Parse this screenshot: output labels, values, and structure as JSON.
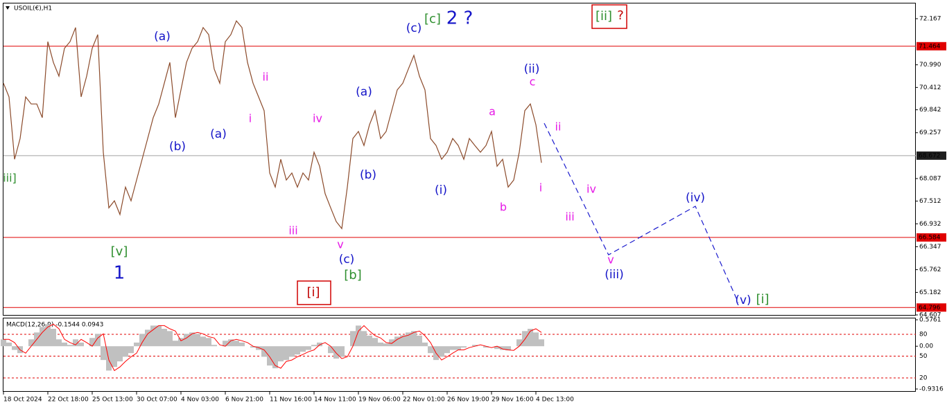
{
  "chart_data": [
    {
      "type": "line",
      "title": "USOIL(€),H1",
      "color": "#8b4a2a",
      "x": [
        0,
        1,
        2,
        3,
        4,
        5,
        6,
        7,
        8,
        9,
        10,
        11,
        12,
        13,
        14,
        15,
        16,
        17,
        18,
        19,
        20,
        21,
        22,
        23,
        24,
        25,
        26,
        27,
        28,
        29,
        30,
        31,
        32,
        33,
        34,
        35,
        36,
        37,
        38,
        39,
        40,
        41,
        42,
        43,
        44,
        45,
        46,
        47,
        48,
        49,
        50,
        51,
        52,
        53,
        54,
        55,
        56,
        57,
        58,
        59,
        60,
        61,
        62,
        63,
        64,
        65,
        66,
        67,
        68,
        69,
        70,
        71,
        72,
        73,
        74,
        75,
        76,
        77,
        78,
        79,
        80,
        81,
        82,
        83,
        84,
        85,
        86,
        87,
        88,
        89,
        90,
        91,
        92,
        93,
        94,
        95,
        96,
        97
      ],
      "values": [
        70.52,
        70.17,
        68.58,
        69.11,
        70.17,
        69.99,
        69.99,
        69.64,
        71.58,
        71.05,
        70.7,
        71.41,
        71.58,
        71.94,
        70.17,
        70.7,
        71.41,
        71.76,
        68.76,
        67.34,
        67.52,
        67.17,
        67.87,
        67.52,
        68.05,
        68.58,
        69.11,
        69.64,
        69.99,
        70.52,
        71.05,
        69.64,
        70.35,
        71.05,
        71.41,
        71.58,
        71.94,
        71.76,
        70.88,
        70.52,
        71.58,
        71.76,
        72.11,
        71.94,
        71.05,
        70.52,
        70.17,
        69.82,
        68.23,
        67.87,
        68.58,
        68.05,
        68.23,
        67.87,
        68.23,
        68.05,
        68.76,
        68.4,
        67.7,
        67.34,
        66.99,
        66.81,
        67.87,
        69.11,
        69.29,
        68.93,
        69.46,
        69.82,
        69.11,
        69.29,
        69.82,
        70.35,
        70.52,
        70.88,
        71.23,
        70.7,
        70.35,
        69.11,
        68.93,
        68.58,
        68.76,
        69.11,
        68.93,
        68.58,
        69.11,
        68.93,
        68.76,
        68.93,
        69.29,
        68.4,
        68.58,
        67.87,
        68.05,
        68.76,
        69.82,
        69.99,
        69.46,
        68.49
      ],
      "xlim": [
        0,
        164.5
      ],
      "ylim": [
        64.589,
        72.573
      ],
      "xticks": [
        {
          "value": 0,
          "label": "18 Oct 2024"
        },
        {
          "value": 8,
          "label": "22 Oct 18:00"
        },
        {
          "value": 16,
          "label": "25 Oct 13:00"
        },
        {
          "value": 24,
          "label": "30 Oct 07:00"
        },
        {
          "value": 32,
          "label": "4 Nov 03:00"
        },
        {
          "value": 40,
          "label": "6 Nov 21:00"
        },
        {
          "value": 48,
          "label": "11 Nov 16:00"
        },
        {
          "value": 56,
          "label": "14 Nov 11:00"
        },
        {
          "value": 64,
          "label": "19 Nov 06:00"
        },
        {
          "value": 72,
          "label": "22 Nov 01:00"
        },
        {
          "value": 80,
          "label": "26 Nov 19:00"
        },
        {
          "value": 88,
          "label": "29 Nov 16:00"
        },
        {
          "value": 96,
          "label": "4 Dec 13:00"
        }
      ],
      "yticks": [
        72.167,
        {
          "value": 70.99,
          "label": "70.990"
        },
        70.412,
        69.842,
        69.257,
        68.087,
        67.512,
        66.932,
        66.347,
        65.762,
        65.182,
        64.607
      ],
      "levels": [
        {
          "value": 71.464,
          "color": "#e00000"
        },
        {
          "value": 68.672,
          "color": "#a0a0a0"
        },
        {
          "value": 66.584,
          "color": "#e00000"
        },
        {
          "value": 64.796,
          "color": "#e00000"
        }
      ],
      "projection": {
        "x": [
          97.5,
          109.1,
          124.75,
          132.5
        ],
        "values": [
          69.5,
          66.14,
          67.38,
          64.92
        ],
        "color": "#1a1acd"
      },
      "annotations": [
        {
          "text": "iii]",
          "color": "#2f8f2f"
        },
        {
          "text": "(a)",
          "color": "#1414c8"
        },
        {
          "text": "(b)",
          "color": "#1414c8"
        },
        {
          "text": "(a)",
          "color": "#1414c8"
        },
        {
          "text": "ii",
          "color": "#e619e6"
        },
        {
          "text": "i",
          "color": "#e619e6"
        },
        {
          "text": "iv",
          "color": "#e619e6"
        },
        {
          "text": "iii",
          "color": "#e619e6"
        },
        {
          "text": "v",
          "color": "#e619e6"
        },
        {
          "text": "(c)",
          "color": "#1414c8"
        },
        {
          "text": "[b]",
          "color": "#2f8f2f"
        },
        {
          "text": "[v]",
          "color": "#2f8f2f"
        },
        {
          "text": "1",
          "color": "#1414c8"
        },
        {
          "text": "[i]",
          "color": "#c00000"
        },
        {
          "text": "(a)",
          "color": "#1414c8"
        },
        {
          "text": "(b)",
          "color": "#1414c8"
        },
        {
          "text": "(i)",
          "color": "#1414c8"
        },
        {
          "text": "(c)",
          "color": "#1414c8"
        },
        {
          "text": "[c]",
          "color": "#2f8f2f"
        },
        {
          "text": "2 ?",
          "color": "#1414c8"
        },
        {
          "text": "[ii]",
          "color": "#2f8f2f"
        },
        {
          "text": "?",
          "color": "#c00000"
        },
        {
          "text": "(ii)",
          "color": "#1414c8"
        },
        {
          "text": "c",
          "color": "#e619e6"
        },
        {
          "text": "a",
          "color": "#e619e6"
        },
        {
          "text": "b",
          "color": "#e619e6"
        },
        {
          "text": "i",
          "color": "#e619e6"
        },
        {
          "text": "ii",
          "color": "#e619e6"
        },
        {
          "text": "iv",
          "color": "#e619e6"
        },
        {
          "text": "iii",
          "color": "#e619e6"
        },
        {
          "text": "v",
          "color": "#e619e6"
        },
        {
          "text": "(iii)",
          "color": "#1414c8"
        },
        {
          "text": "(iv)",
          "color": "#1414c8"
        },
        {
          "text": "(v)",
          "color": "#1414c8"
        },
        {
          "text": "[i]",
          "color": "#2f8f2f"
        }
      ]
    },
    {
      "type": "bar",
      "title": "MACD(12,26,9) -0.1544 0.0943",
      "color": "#c0c0c0",
      "values": [
        0.15,
        0.08,
        -0.08,
        -0.15,
        0,
        0.15,
        0.3,
        0.42,
        0.48,
        0.38,
        0.15,
        0.08,
        0.03,
        0.15,
        0.08,
        0,
        0.18,
        0.27,
        -0.3,
        -0.53,
        -0.45,
        -0.33,
        -0.23,
        -0.15,
        0.08,
        0.27,
        0.36,
        0.45,
        0.45,
        0.38,
        0.33,
        0.12,
        0.18,
        0.27,
        0.3,
        0.27,
        0.21,
        0.18,
        0.03,
        0,
        0.12,
        0.15,
        0.12,
        0.08,
        0,
        -0.03,
        -0.08,
        -0.23,
        -0.42,
        -0.48,
        -0.33,
        -0.3,
        -0.23,
        -0.18,
        -0.12,
        -0.08,
        0.03,
        0.08,
        0,
        -0.15,
        -0.27,
        -0.23,
        0,
        0.33,
        0.45,
        0.33,
        0.23,
        0.18,
        0.08,
        0.06,
        0.15,
        0.21,
        0.24,
        0.3,
        0.33,
        0.23,
        0.08,
        -0.15,
        -0.3,
        -0.23,
        -0.15,
        -0.08,
        -0.08,
        -0.03,
        0,
        0.03,
        0,
        -0.03,
        0,
        -0.06,
        -0.08,
        -0.09,
        0,
        0.15,
        0.33,
        0.38,
        0.3,
        0.15
      ],
      "signal": {
        "color": "#ff0000",
        "values": [
          0.15,
          0.15,
          0.08,
          -0.08,
          -0.15,
          0,
          0.15,
          0.3,
          0.42,
          0.48,
          0.38,
          0.15,
          0.08,
          0.03,
          0.15,
          0.08,
          0,
          0.18,
          0.27,
          -0.3,
          -0.53,
          -0.45,
          -0.33,
          -0.23,
          -0.15,
          0.08,
          0.27,
          0.36,
          0.45,
          0.45,
          0.38,
          0.33,
          0.12,
          0.18,
          0.27,
          0.3,
          0.27,
          0.21,
          0.18,
          0.03,
          0,
          0.12,
          0.15,
          0.12,
          0.08,
          0,
          -0.03,
          -0.08,
          -0.23,
          -0.42,
          -0.48,
          -0.33,
          -0.3,
          -0.23,
          -0.18,
          -0.12,
          -0.08,
          0.03,
          0.08,
          0,
          -0.15,
          -0.27,
          -0.23,
          0,
          0.33,
          0.45,
          0.33,
          0.23,
          0.18,
          0.08,
          0.06,
          0.15,
          0.21,
          0.24,
          0.3,
          0.33,
          0.23,
          0.08,
          -0.15,
          -0.3,
          -0.23,
          -0.15,
          -0.08,
          -0.08,
          -0.03,
          0,
          0.03,
          0,
          -0.03,
          0,
          -0.06,
          -0.08,
          -0.09,
          0,
          0.15,
          0.33,
          0.38,
          0.3
        ]
      },
      "ylim": [
        -0.9316,
        0.5761
      ],
      "yticks": [
        0.5761,
        {
          "value": 0,
          "label": "0.00"
        },
        -0.9316
      ],
      "y2lim": [
        0,
        100
      ],
      "y2ticks": [
        80,
        50,
        20
      ],
      "level_color": "#e00000"
    }
  ]
}
